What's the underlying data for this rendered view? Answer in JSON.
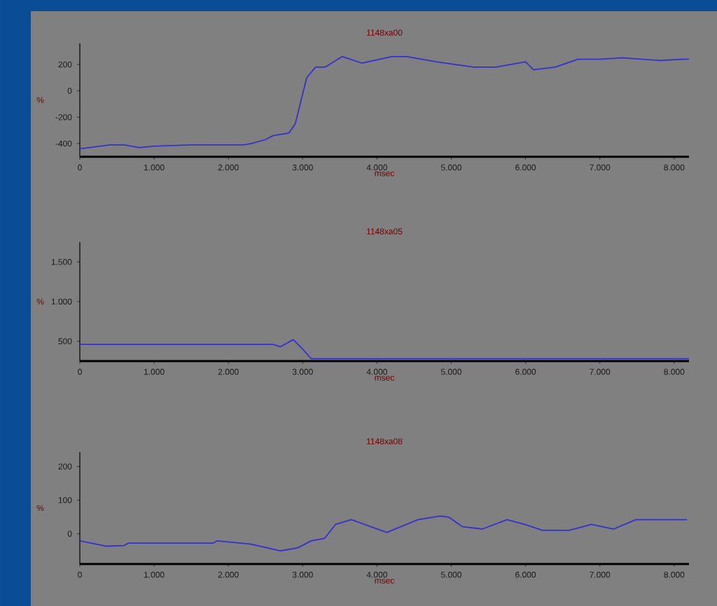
{
  "chart_data": [
    {
      "type": "line",
      "title": "1148xa00",
      "xlabel": "msec",
      "ylabel": "%",
      "xlim": [
        0,
        8200
      ],
      "ylim": [
        -500,
        360
      ],
      "xticks": [
        0,
        {
          "value": 1000,
          "label": "1.000"
        },
        {
          "value": 2000,
          "label": "2.000"
        },
        {
          "value": 3000,
          "label": "3.000"
        },
        {
          "value": 4000,
          "label": "4.000"
        },
        {
          "value": 5000,
          "label": "5.000"
        },
        {
          "value": 6000,
          "label": "6.000"
        },
        {
          "value": 7000,
          "label": "7.000"
        },
        {
          "value": 8000,
          "label": "8.000"
        }
      ],
      "yticks": [
        -400,
        -200,
        0,
        200
      ],
      "grid": false,
      "x": [
        0,
        400,
        600,
        800,
        1000,
        1500,
        2200,
        2305,
        2500,
        2600,
        2814,
        2900,
        3054,
        3174,
        3300,
        3533,
        3800,
        4200,
        4400,
        4800,
        5300,
        5600,
        6000,
        6108,
        6400,
        6707,
        7000,
        7300,
        7800,
        8114,
        8200
      ],
      "series": [
        {
          "color": "#3333cc",
          "values": [
            -440,
            -410,
            -410,
            -430,
            -420,
            -410,
            -410,
            -400,
            -370,
            -340,
            -320,
            -250,
            100,
            180,
            180,
            260,
            210,
            260,
            260,
            220,
            180,
            180,
            220,
            160,
            180,
            240,
            240,
            250,
            230,
            240,
            240
          ]
        }
      ]
    },
    {
      "type": "line",
      "title": "1148xa05",
      "xlabel": "msec",
      "ylabel": "%",
      "xlim": [
        0,
        8200
      ],
      "ylim": [
        250,
        1750
      ],
      "xticks": [
        0,
        {
          "value": 1000,
          "label": "1.000"
        },
        {
          "value": 2000,
          "label": "2.000"
        },
        {
          "value": 3000,
          "label": "3.000"
        },
        {
          "value": 4000,
          "label": "4.000"
        },
        {
          "value": 5000,
          "label": "5.000"
        },
        {
          "value": 6000,
          "label": "6.000"
        },
        {
          "value": 7000,
          "label": "7.000"
        },
        {
          "value": 8000,
          "label": "8.000"
        }
      ],
      "yticks": [
        500,
        {
          "value": 1000,
          "label": "1.000"
        },
        {
          "value": 1500,
          "label": "1.500"
        }
      ],
      "grid": false,
      "x": [
        0,
        2600,
        2700,
        2874,
        3000,
        3114,
        3400,
        8200
      ],
      "series": [
        {
          "color": "#3333cc",
          "values": [
            460,
            460,
            430,
            520,
            400,
            280,
            280,
            280
          ]
        }
      ]
    },
    {
      "type": "line",
      "title": "1148xa08",
      "xlabel": "msec",
      "ylabel": "%",
      "xlim": [
        0,
        8200
      ],
      "ylim": [
        -90,
        243
      ],
      "xticks": [
        0,
        {
          "value": 1000,
          "label": "1.000"
        },
        {
          "value": 2000,
          "label": "2.000"
        },
        {
          "value": 3000,
          "label": "3.000"
        },
        {
          "value": 4000,
          "label": "4.000"
        },
        {
          "value": 5000,
          "label": "5.000"
        },
        {
          "value": 6000,
          "label": "6.000"
        },
        {
          "value": 7000,
          "label": "7.000"
        },
        {
          "value": 8000,
          "label": "8.000"
        }
      ],
      "yticks": [
        0,
        100,
        200
      ],
      "grid": false,
      "x": [
        0,
        359,
        599,
        650,
        1796,
        1850,
        2305,
        2695,
        2934,
        3114,
        3293,
        3443,
        3653,
        3832,
        4132,
        4551,
        4850,
        4970,
        5150,
        5419,
        5749,
        5988,
        6228,
        6587,
        6886,
        7186,
        7485,
        7844,
        8174
      ],
      "series": [
        {
          "color": "#3333cc",
          "values": [
            -21,
            -37,
            -35,
            -28,
            -28,
            -21,
            -31,
            -51,
            -42,
            -21,
            -14,
            28,
            42,
            28,
            4,
            42,
            53,
            49,
            21,
            14,
            42,
            28,
            10,
            10,
            28,
            14,
            42,
            42,
            42
          ]
        }
      ]
    }
  ]
}
